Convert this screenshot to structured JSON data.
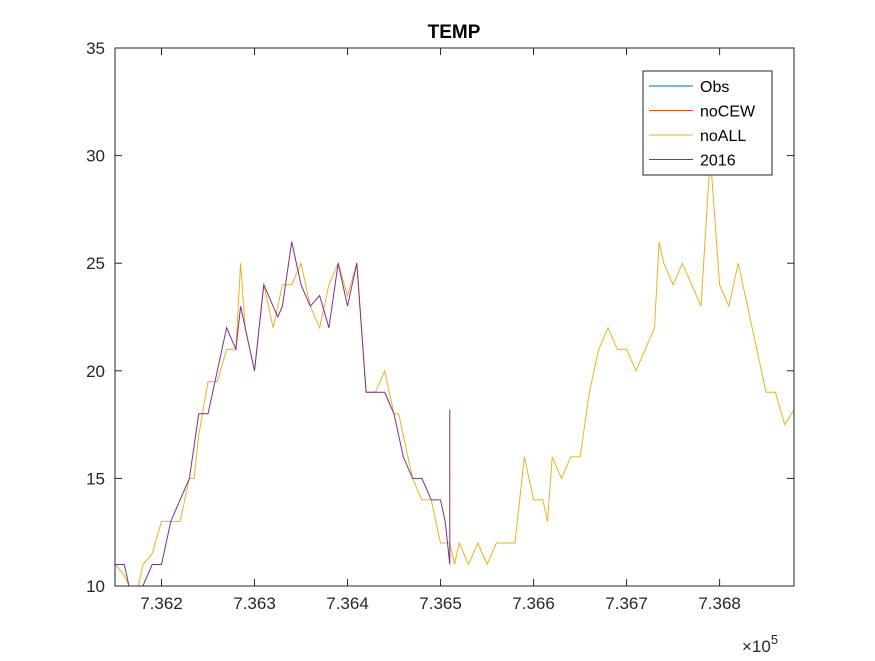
{
  "chart_data": {
    "type": "line",
    "title": "TEMP",
    "xlabel": "",
    "ylabel": "",
    "x_exponent_label": "×10",
    "x_exponent_power": "5",
    "xlim": [
      7.3615,
      7.3688
    ],
    "ylim": [
      10,
      35
    ],
    "x_ticks": [
      7.362,
      7.363,
      7.364,
      7.365,
      7.366,
      7.367,
      7.368
    ],
    "x_tick_labels": [
      "7.362",
      "7.363",
      "7.364",
      "7.365",
      "7.366",
      "7.367",
      "7.368"
    ],
    "y_ticks": [
      10,
      15,
      20,
      25,
      30,
      35
    ],
    "y_tick_labels": [
      "10",
      "15",
      "20",
      "25",
      "30",
      "35"
    ],
    "grid": false,
    "legend_position": "top-right",
    "series": [
      {
        "name": "Obs",
        "color": "#0072BD",
        "x": [],
        "y": []
      },
      {
        "name": "noCEW",
        "color": "#D95319",
        "x": [],
        "y": []
      },
      {
        "name": "noALL",
        "color": "#EDB120",
        "x": [
          7.3615,
          7.3616,
          7.36165,
          7.3617,
          7.36175,
          7.3618,
          7.3619,
          7.362,
          7.3621,
          7.3622,
          7.3623,
          7.36235,
          7.3624,
          7.3625,
          7.3626,
          7.3627,
          7.3628,
          7.36285,
          7.3629,
          7.363,
          7.3631,
          7.3632,
          7.36325,
          7.3633,
          7.3634,
          7.3635,
          7.3636,
          7.3637,
          7.3638,
          7.3639,
          7.364,
          7.3641,
          7.3642,
          7.3643,
          7.3644,
          7.3645,
          7.36455,
          7.3646,
          7.3647,
          7.3648,
          7.3649,
          7.365,
          7.3651,
          7.36515,
          7.3652,
          7.3653,
          7.3654,
          7.3655,
          7.3656,
          7.3657,
          7.3658,
          7.3659,
          7.366,
          7.3661,
          7.36615,
          7.3662,
          7.3663,
          7.3664,
          7.3665,
          7.3666,
          7.3667,
          7.3668,
          7.3669,
          7.367,
          7.3671,
          7.3672,
          7.3673,
          7.36735,
          7.3674,
          7.3675,
          7.3676,
          7.3677,
          7.3678,
          7.3679,
          7.368,
          7.3681,
          7.3682,
          7.3683,
          7.3684,
          7.3685,
          7.3686,
          7.3687,
          7.3688
        ],
        "y": [
          11,
          10.5,
          10,
          9.8,
          10,
          11,
          11.5,
          13,
          13,
          13,
          15,
          15,
          17,
          19.5,
          19.5,
          21,
          21,
          25,
          22,
          20,
          24,
          22,
          23,
          24,
          24,
          25,
          23,
          22,
          24,
          25,
          23.5,
          25,
          19,
          19,
          20,
          18,
          18,
          17,
          15,
          14,
          14,
          12,
          12,
          11,
          12,
          11,
          12,
          11,
          12,
          12,
          12,
          16,
          14,
          14,
          13,
          16,
          15,
          16,
          16,
          19,
          21,
          22,
          21,
          21,
          20,
          21,
          22,
          26,
          25,
          24,
          25,
          24,
          23,
          30,
          24,
          23,
          25,
          23,
          21,
          19,
          19,
          17.5,
          18.2
        ]
      },
      {
        "name": "2016",
        "color": "#7E2F8E",
        "x": [
          7.3615,
          7.3616,
          7.36165,
          7.3617,
          7.3618,
          7.3619,
          7.362,
          7.3621,
          7.3622,
          7.3623,
          7.3624,
          7.3625,
          7.3626,
          7.3627,
          7.3628,
          7.36285,
          7.3629,
          7.363,
          7.3631,
          7.3632,
          7.36325,
          7.3633,
          7.3634,
          7.3635,
          7.3636,
          7.3637,
          7.3638,
          7.3639,
          7.364,
          7.3641,
          7.3642,
          7.3643,
          7.3644,
          7.3645,
          7.3646,
          7.3647,
          7.3648,
          7.3649,
          7.365,
          7.36505,
          7.3651,
          7.3651
        ],
        "y": [
          11,
          11,
          10,
          9.8,
          10,
          11,
          11,
          13,
          14,
          15,
          18,
          18,
          20,
          22,
          21,
          23,
          22,
          20,
          24,
          23,
          22.5,
          23,
          26,
          24,
          23,
          23.5,
          22,
          25,
          23,
          25,
          19,
          19,
          19,
          18,
          16,
          15,
          15,
          14,
          14,
          13,
          11,
          18.2
        ]
      }
    ]
  }
}
